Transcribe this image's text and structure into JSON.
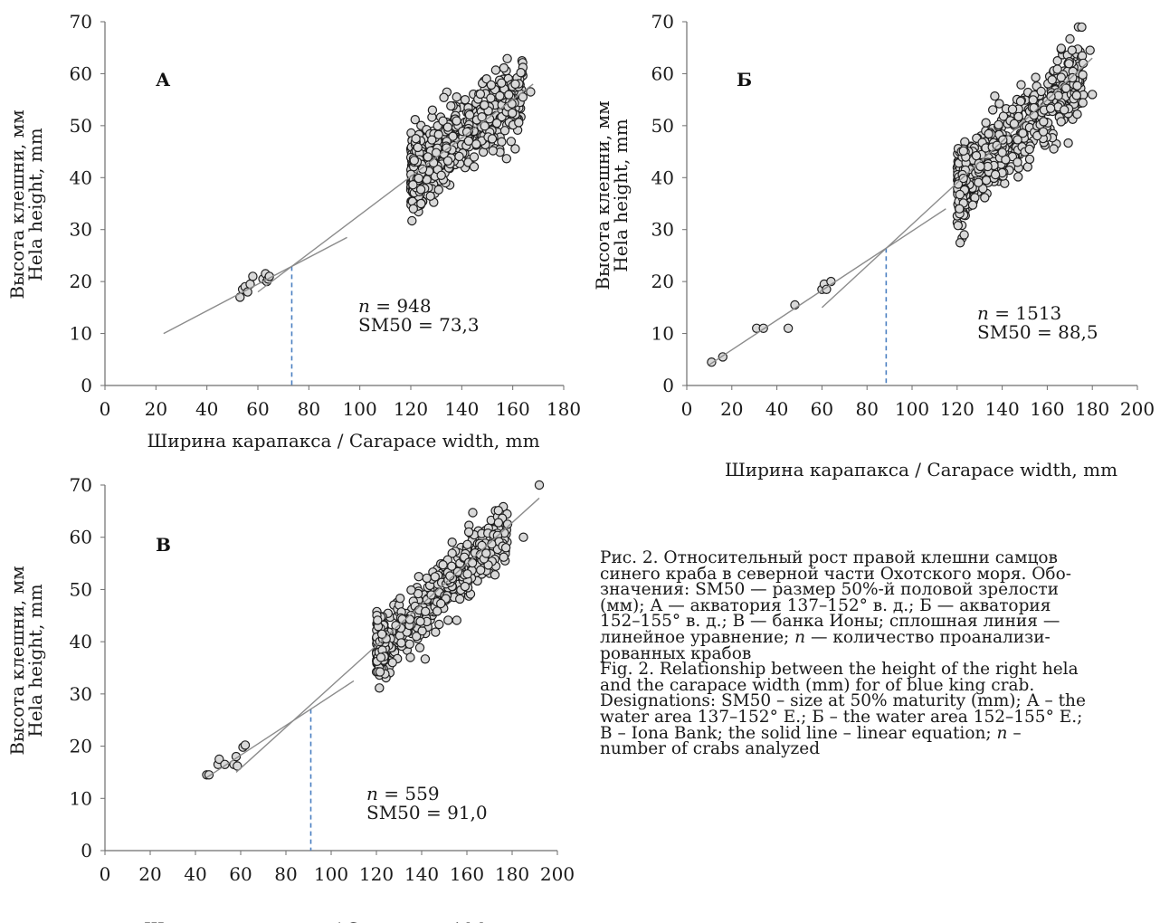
{
  "chart_data": [
    {
      "type": "scatter",
      "panel_label": "А",
      "xlabel": "Ширина карапакса  /  Carapace width, mm",
      "ylabel": [
        "Высота клешни, мм",
        "Hela height, mm"
      ],
      "xlim": [
        0,
        180
      ],
      "ylim": [
        0,
        70
      ],
      "xticks": [
        0,
        20,
        40,
        60,
        80,
        100,
        120,
        140,
        160,
        180
      ],
      "yticks": [
        0,
        10,
        20,
        30,
        40,
        50,
        60,
        70
      ],
      "n_text": "n = 948",
      "sm50_text": "SM50 = 73,3",
      "sm50": 73.3,
      "immature_points": [
        [
          53,
          17
        ],
        [
          54,
          18.5
        ],
        [
          55,
          19
        ],
        [
          56,
          18
        ],
        [
          57,
          19.5
        ],
        [
          58,
          21
        ],
        [
          62,
          20.5
        ],
        [
          63,
          21.5
        ],
        [
          63.5,
          20
        ],
        [
          64,
          20.5
        ],
        [
          64.5,
          21
        ]
      ],
      "mature_cluster": {
        "x_range": [
          120,
          168
        ],
        "trend_start": [
          120,
          41
        ],
        "trend_end": [
          165,
          57
        ],
        "spread": 3.5,
        "count": 948,
        "extremes": [
          [
            121,
            34
          ],
          [
            124,
            35
          ],
          [
            122,
            47.5
          ],
          [
            161,
            58
          ],
          [
            164,
            55.5
          ],
          [
            167,
            56.5
          ]
        ]
      },
      "lines": [
        [
          [
            23,
            10
          ],
          [
            95,
            28.5
          ]
        ],
        [
          [
            60,
            18
          ],
          [
            168,
            58
          ]
        ]
      ]
    },
    {
      "type": "scatter",
      "panel_label": "Б",
      "xlabel": "Ширина карапакса  /  Carapace width, mm",
      "ylabel": [
        "Высота клешни, мм",
        "Hela height, mm"
      ],
      "xlim": [
        0,
        200
      ],
      "ylim": [
        0,
        70
      ],
      "xticks": [
        0,
        20,
        40,
        60,
        80,
        100,
        120,
        140,
        160,
        180,
        200
      ],
      "yticks": [
        0,
        10,
        20,
        30,
        40,
        50,
        60,
        70
      ],
      "n_text": "n = 1513",
      "sm50_text": "SM50 = 88,5",
      "sm50": 88.5,
      "immature_points": [
        [
          11,
          4.5
        ],
        [
          16,
          5.5
        ],
        [
          31,
          11
        ],
        [
          34,
          11
        ],
        [
          45,
          11
        ],
        [
          48,
          15.5
        ],
        [
          60,
          18.5
        ],
        [
          61,
          19.5
        ],
        [
          62,
          18.5
        ],
        [
          64,
          20
        ]
      ],
      "mature_cluster": {
        "x_range": [
          120,
          180
        ],
        "trend_start": [
          120,
          38
        ],
        "trend_end": [
          175,
          60
        ],
        "spread": 3.5,
        "count": 1513,
        "extremes": [
          [
            121,
            34
          ],
          [
            171,
            64.5
          ],
          [
            179,
            64.5
          ],
          [
            180,
            56
          ],
          [
            176,
            62
          ]
        ]
      },
      "lines": [
        [
          [
            10,
            4
          ],
          [
            115,
            34
          ]
        ],
        [
          [
            60,
            15
          ],
          [
            180,
            63
          ]
        ]
      ]
    },
    {
      "type": "scatter",
      "panel_label": "В",
      "xlabel": "Ширина карапакса  /  Carapace width, mm",
      "ylabel": [
        "Высота клешни, мм",
        "Hela height, mm"
      ],
      "xlim": [
        0,
        200
      ],
      "ylim": [
        0,
        70
      ],
      "xticks": [
        0,
        20,
        40,
        60,
        80,
        100,
        120,
        140,
        160,
        180,
        200
      ],
      "yticks": [
        0,
        10,
        20,
        30,
        40,
        50,
        60,
        70
      ],
      "n_text": "n = 559",
      "sm50_text": "SM50 = 91,0",
      "sm50": 91.0,
      "immature_points": [
        [
          45,
          14.5
        ],
        [
          46,
          14.5
        ],
        [
          50,
          16.5
        ],
        [
          50.5,
          17.5
        ],
        [
          53,
          16.5
        ],
        [
          57,
          16.5
        ],
        [
          58,
          18
        ],
        [
          58.5,
          16.2
        ],
        [
          61,
          19.8
        ],
        [
          62,
          20.2
        ]
      ],
      "mature_cluster": {
        "x_range": [
          120,
          182
        ],
        "trend_start": [
          120,
          38
        ],
        "trend_end": [
          180,
          62
        ],
        "spread": 3,
        "count": 559,
        "extremes": [
          [
            122,
            37
          ],
          [
            135,
            37
          ],
          [
            185,
            60
          ],
          [
            178,
            62.5
          ],
          [
            192,
            70
          ]
        ]
      },
      "lines": [
        [
          [
            45,
            14
          ],
          [
            110,
            32.5
          ]
        ],
        [
          [
            58,
            15
          ],
          [
            192,
            67.5
          ]
        ]
      ]
    }
  ],
  "caption": {
    "ru": [
      "Рис. 2. Относительный рост правой клешни самцов",
      "синего краба в северной части Охотского моря. Обо-",
      "значения: SM50 — размер 50%-й половой зрелости",
      "(мм); А — акватория 137–152° в. д.; Б — акватория",
      "152–155° в. д.; В — банка Ионы; сплошная линия —",
      "линейное уравнение; n — количество проанализи-",
      "рованных крабов"
    ],
    "en": [
      "Fig. 2. Relationship between the height of the right hela",
      "and the carapace width (mm) for of blue king crab.",
      "Designations: SM50 – size at 50% maturity (mm); А – the",
      "water area 137–152° E.; Б – the water area 152–155° E.;",
      "В – Iona Bank; the solid line – linear equation; n –",
      "number of crabs analyzed"
    ]
  },
  "colors": {
    "marker_fill": "#d9d9d9",
    "marker_stroke": "#1e1e1e",
    "trend_line": "#8c8c8c",
    "sm50_line": "#4a7fc1",
    "axis": "#6e6e6e"
  }
}
